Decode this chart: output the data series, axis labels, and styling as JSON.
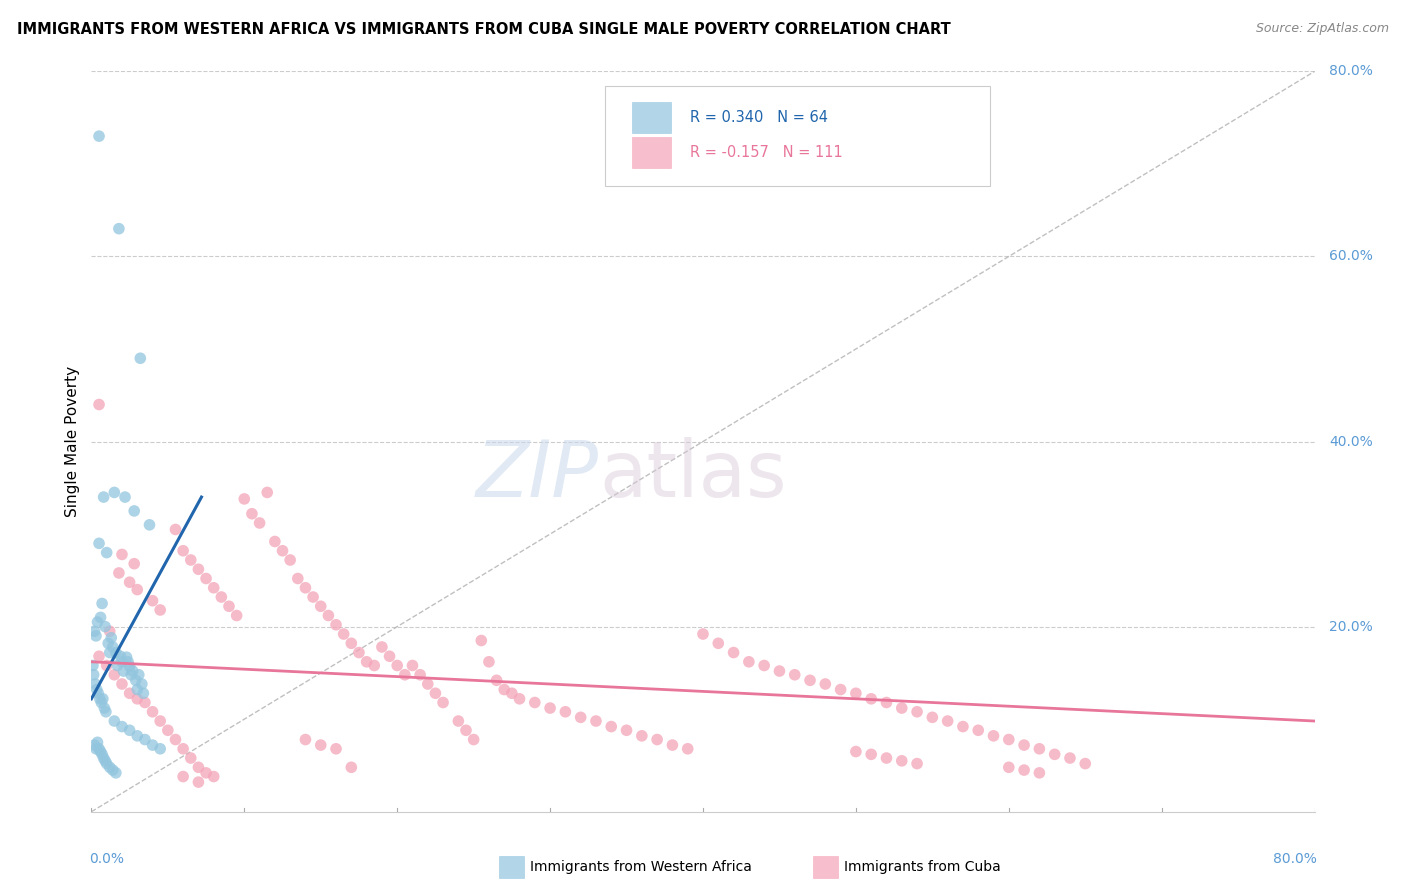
{
  "title": "IMMIGRANTS FROM WESTERN AFRICA VS IMMIGRANTS FROM CUBA SINGLE MALE POVERTY CORRELATION CHART",
  "source": "Source: ZipAtlas.com",
  "ylabel": "Single Male Poverty",
  "watermark_zip": "ZIP",
  "watermark_atlas": "atlas",
  "blue_color": "#92c5de",
  "pink_color": "#f4a4b8",
  "blue_line_color": "#2166ac",
  "pink_line_color": "#e8769a",
  "blue_scatter": [
    [
      0.005,
      0.73
    ],
    [
      0.018,
      0.63
    ],
    [
      0.032,
      0.49
    ],
    [
      0.008,
      0.34
    ],
    [
      0.022,
      0.34
    ],
    [
      0.028,
      0.325
    ],
    [
      0.005,
      0.29
    ],
    [
      0.01,
      0.28
    ],
    [
      0.015,
      0.345
    ],
    [
      0.038,
      0.31
    ],
    [
      0.002,
      0.195
    ],
    [
      0.003,
      0.19
    ],
    [
      0.004,
      0.205
    ],
    [
      0.006,
      0.21
    ],
    [
      0.007,
      0.225
    ],
    [
      0.009,
      0.2
    ],
    [
      0.011,
      0.182
    ],
    [
      0.013,
      0.188
    ],
    [
      0.014,
      0.178
    ],
    [
      0.016,
      0.172
    ],
    [
      0.017,
      0.158
    ],
    [
      0.019,
      0.168
    ],
    [
      0.02,
      0.162
    ],
    [
      0.021,
      0.152
    ],
    [
      0.023,
      0.167
    ],
    [
      0.024,
      0.162
    ],
    [
      0.025,
      0.157
    ],
    [
      0.026,
      0.148
    ],
    [
      0.027,
      0.152
    ],
    [
      0.029,
      0.142
    ],
    [
      0.03,
      0.132
    ],
    [
      0.031,
      0.148
    ],
    [
      0.033,
      0.138
    ],
    [
      0.034,
      0.128
    ],
    [
      0.001,
      0.158
    ],
    [
      0.0015,
      0.148
    ],
    [
      0.0025,
      0.138
    ],
    [
      0.0035,
      0.132
    ],
    [
      0.0045,
      0.128
    ],
    [
      0.0055,
      0.122
    ],
    [
      0.0065,
      0.118
    ],
    [
      0.0075,
      0.122
    ],
    [
      0.0085,
      0.112
    ],
    [
      0.0095,
      0.108
    ],
    [
      0.012,
      0.172
    ],
    [
      0.015,
      0.098
    ],
    [
      0.02,
      0.092
    ],
    [
      0.025,
      0.088
    ],
    [
      0.03,
      0.082
    ],
    [
      0.035,
      0.078
    ],
    [
      0.04,
      0.072
    ],
    [
      0.045,
      0.068
    ],
    [
      0.002,
      0.072
    ],
    [
      0.003,
      0.068
    ],
    [
      0.004,
      0.075
    ],
    [
      0.005,
      0.068
    ],
    [
      0.006,
      0.065
    ],
    [
      0.007,
      0.062
    ],
    [
      0.008,
      0.058
    ],
    [
      0.009,
      0.055
    ],
    [
      0.01,
      0.052
    ],
    [
      0.012,
      0.048
    ],
    [
      0.014,
      0.045
    ],
    [
      0.016,
      0.042
    ]
  ],
  "pink_scatter": [
    [
      0.005,
      0.44
    ],
    [
      0.012,
      0.195
    ],
    [
      0.02,
      0.278
    ],
    [
      0.028,
      0.268
    ],
    [
      0.018,
      0.258
    ],
    [
      0.025,
      0.248
    ],
    [
      0.03,
      0.24
    ],
    [
      0.04,
      0.228
    ],
    [
      0.045,
      0.218
    ],
    [
      0.055,
      0.305
    ],
    [
      0.06,
      0.282
    ],
    [
      0.065,
      0.272
    ],
    [
      0.07,
      0.262
    ],
    [
      0.075,
      0.252
    ],
    [
      0.08,
      0.242
    ],
    [
      0.085,
      0.232
    ],
    [
      0.09,
      0.222
    ],
    [
      0.095,
      0.212
    ],
    [
      0.1,
      0.338
    ],
    [
      0.105,
      0.322
    ],
    [
      0.11,
      0.312
    ],
    [
      0.115,
      0.345
    ],
    [
      0.12,
      0.292
    ],
    [
      0.125,
      0.282
    ],
    [
      0.13,
      0.272
    ],
    [
      0.135,
      0.252
    ],
    [
      0.14,
      0.242
    ],
    [
      0.145,
      0.232
    ],
    [
      0.15,
      0.222
    ],
    [
      0.155,
      0.212
    ],
    [
      0.16,
      0.202
    ],
    [
      0.165,
      0.192
    ],
    [
      0.17,
      0.182
    ],
    [
      0.175,
      0.172
    ],
    [
      0.18,
      0.162
    ],
    [
      0.185,
      0.158
    ],
    [
      0.19,
      0.178
    ],
    [
      0.195,
      0.168
    ],
    [
      0.2,
      0.158
    ],
    [
      0.205,
      0.148
    ],
    [
      0.21,
      0.158
    ],
    [
      0.215,
      0.148
    ],
    [
      0.22,
      0.138
    ],
    [
      0.225,
      0.128
    ],
    [
      0.26,
      0.162
    ],
    [
      0.265,
      0.142
    ],
    [
      0.27,
      0.132
    ],
    [
      0.275,
      0.128
    ],
    [
      0.28,
      0.122
    ],
    [
      0.29,
      0.118
    ],
    [
      0.005,
      0.168
    ],
    [
      0.01,
      0.158
    ],
    [
      0.015,
      0.148
    ],
    [
      0.02,
      0.138
    ],
    [
      0.025,
      0.128
    ],
    [
      0.03,
      0.122
    ],
    [
      0.035,
      0.118
    ],
    [
      0.04,
      0.108
    ],
    [
      0.045,
      0.098
    ],
    [
      0.05,
      0.088
    ],
    [
      0.055,
      0.078
    ],
    [
      0.06,
      0.068
    ],
    [
      0.065,
      0.058
    ],
    [
      0.07,
      0.048
    ],
    [
      0.075,
      0.042
    ],
    [
      0.08,
      0.038
    ],
    [
      0.36,
      0.082
    ],
    [
      0.37,
      0.078
    ],
    [
      0.38,
      0.072
    ],
    [
      0.39,
      0.068
    ],
    [
      0.4,
      0.192
    ],
    [
      0.41,
      0.182
    ],
    [
      0.42,
      0.172
    ],
    [
      0.43,
      0.162
    ],
    [
      0.44,
      0.158
    ],
    [
      0.45,
      0.152
    ],
    [
      0.46,
      0.148
    ],
    [
      0.47,
      0.142
    ],
    [
      0.48,
      0.138
    ],
    [
      0.49,
      0.132
    ],
    [
      0.5,
      0.128
    ],
    [
      0.51,
      0.122
    ],
    [
      0.52,
      0.118
    ],
    [
      0.53,
      0.112
    ],
    [
      0.54,
      0.108
    ],
    [
      0.55,
      0.102
    ],
    [
      0.56,
      0.098
    ],
    [
      0.57,
      0.092
    ],
    [
      0.58,
      0.088
    ],
    [
      0.59,
      0.082
    ],
    [
      0.6,
      0.078
    ],
    [
      0.61,
      0.072
    ],
    [
      0.62,
      0.068
    ],
    [
      0.63,
      0.062
    ],
    [
      0.64,
      0.058
    ],
    [
      0.65,
      0.052
    ],
    [
      0.3,
      0.112
    ],
    [
      0.31,
      0.108
    ],
    [
      0.32,
      0.102
    ],
    [
      0.33,
      0.098
    ],
    [
      0.34,
      0.092
    ],
    [
      0.35,
      0.088
    ],
    [
      0.23,
      0.118
    ],
    [
      0.24,
      0.098
    ],
    [
      0.245,
      0.088
    ],
    [
      0.25,
      0.078
    ],
    [
      0.255,
      0.185
    ],
    [
      0.14,
      0.078
    ],
    [
      0.15,
      0.072
    ],
    [
      0.16,
      0.068
    ],
    [
      0.17,
      0.048
    ],
    [
      0.06,
      0.038
    ],
    [
      0.07,
      0.032
    ],
    [
      0.5,
      0.065
    ],
    [
      0.51,
      0.062
    ],
    [
      0.52,
      0.058
    ],
    [
      0.53,
      0.055
    ],
    [
      0.54,
      0.052
    ],
    [
      0.6,
      0.048
    ],
    [
      0.61,
      0.045
    ],
    [
      0.62,
      0.042
    ]
  ],
  "xlim": [
    0.0,
    0.8
  ],
  "ylim": [
    0.0,
    0.8
  ],
  "blue_line_x": [
    0.0,
    0.072
  ],
  "blue_line_y": [
    0.122,
    0.34
  ],
  "pink_line_x": [
    0.0,
    0.8
  ],
  "pink_line_y": [
    0.162,
    0.098
  ],
  "diag_line_x": [
    0.0,
    0.8
  ],
  "diag_line_y": [
    0.0,
    0.8
  ],
  "legend_bottom_blue": "Immigrants from Western Africa",
  "legend_bottom_pink": "Immigrants from Cuba",
  "right_ytick_vals": [
    0.8,
    0.6,
    0.4,
    0.2
  ],
  "right_ytick_labels": [
    "80.0%",
    "60.0%",
    "40.0%",
    "20.0%"
  ],
  "ytick_color": "#5b9bd5",
  "xtick_color": "#5b9bd5"
}
